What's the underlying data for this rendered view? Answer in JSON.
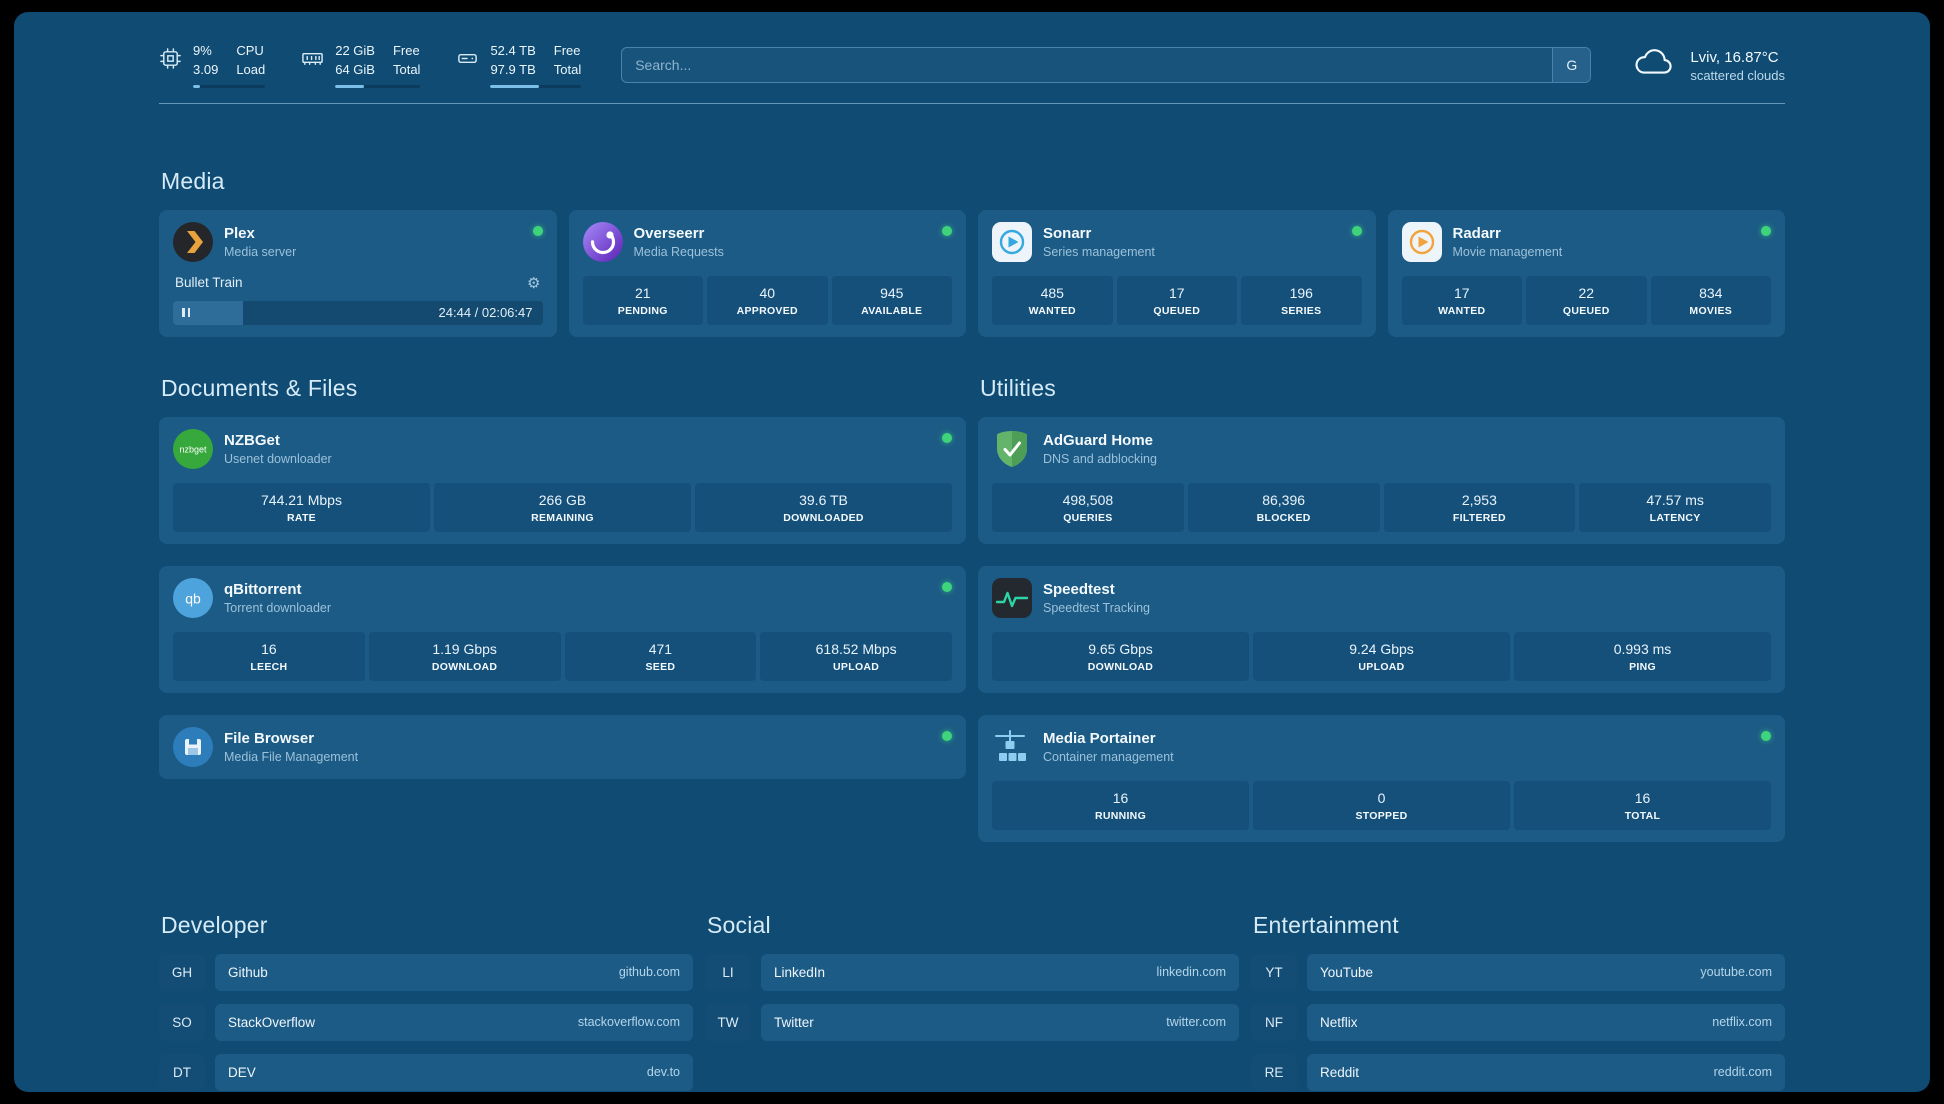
{
  "topbar": {
    "metrics": [
      {
        "icon": "cpu-icon",
        "values": [
          "9%",
          "3.09"
        ],
        "labels": [
          "CPU",
          "Load"
        ],
        "bar_pct": 9
      },
      {
        "icon": "ram-icon",
        "values": [
          "22 GiB",
          "64 GiB"
        ],
        "labels": [
          "Free",
          "Total"
        ],
        "bar_pct": 34
      },
      {
        "icon": "disk-icon",
        "values": [
          "52.4 TB",
          "97.9 TB"
        ],
        "labels": [
          "Free",
          "Total"
        ],
        "bar_pct": 53
      }
    ],
    "search": {
      "placeholder": "Search...",
      "button_label": "G"
    },
    "weather": {
      "location": "Lviv, 16.87°C",
      "condition": "scattered clouds"
    }
  },
  "media": {
    "heading": "Media",
    "plex": {
      "name": "Plex",
      "desc": "Media server",
      "now_playing": "Bullet Train",
      "time": "24:44 / 02:06:47",
      "progress_pct": 19
    },
    "overseerr": {
      "name": "Overseerr",
      "desc": "Media Requests",
      "stats": [
        {
          "value": "21",
          "label": "PENDING"
        },
        {
          "value": "40",
          "label": "APPROVED"
        },
        {
          "value": "945",
          "label": "AVAILABLE"
        }
      ]
    },
    "sonarr": {
      "name": "Sonarr",
      "desc": "Series management",
      "stats": [
        {
          "value": "485",
          "label": "WANTED"
        },
        {
          "value": "17",
          "label": "QUEUED"
        },
        {
          "value": "196",
          "label": "SERIES"
        }
      ]
    },
    "radarr": {
      "name": "Radarr",
      "desc": "Movie management",
      "stats": [
        {
          "value": "17",
          "label": "WANTED"
        },
        {
          "value": "22",
          "label": "QUEUED"
        },
        {
          "value": "834",
          "label": "MOVIES"
        }
      ]
    }
  },
  "documents": {
    "heading": "Documents & Files",
    "nzbget": {
      "name": "NZBGet",
      "desc": "Usenet downloader",
      "stats": [
        {
          "value": "744.21 Mbps",
          "label": "RATE"
        },
        {
          "value": "266 GB",
          "label": "REMAINING"
        },
        {
          "value": "39.6 TB",
          "label": "DOWNLOADED"
        }
      ]
    },
    "qbittorrent": {
      "name": "qBittorrent",
      "desc": "Torrent downloader",
      "stats": [
        {
          "value": "16",
          "label": "LEECH"
        },
        {
          "value": "1.19 Gbps",
          "label": "DOWNLOAD"
        },
        {
          "value": "471",
          "label": "SEED"
        },
        {
          "value": "618.52 Mbps",
          "label": "UPLOAD"
        }
      ]
    },
    "filebrowser": {
      "name": "File Browser",
      "desc": "Media File Management"
    }
  },
  "utilities": {
    "heading": "Utilities",
    "adguard": {
      "name": "AdGuard Home",
      "desc": "DNS and adblocking",
      "stats": [
        {
          "value": "498,508",
          "label": "QUERIES"
        },
        {
          "value": "86,396",
          "label": "BLOCKED"
        },
        {
          "value": "2,953",
          "label": "FILTERED"
        },
        {
          "value": "47.57 ms",
          "label": "LATENCY"
        }
      ]
    },
    "speedtest": {
      "name": "Speedtest",
      "desc": "Speedtest Tracking",
      "stats": [
        {
          "value": "9.65 Gbps",
          "label": "DOWNLOAD"
        },
        {
          "value": "9.24 Gbps",
          "label": "UPLOAD"
        },
        {
          "value": "0.993 ms",
          "label": "PING"
        }
      ]
    },
    "portainer": {
      "name": "Media Portainer",
      "desc": "Container management",
      "stats": [
        {
          "value": "16",
          "label": "RUNNING"
        },
        {
          "value": "0",
          "label": "STOPPED"
        },
        {
          "value": "16",
          "label": "TOTAL"
        }
      ]
    }
  },
  "bookmarks": {
    "developer": {
      "heading": "Developer",
      "items": [
        {
          "abbr": "GH",
          "name": "Github",
          "url": "github.com"
        },
        {
          "abbr": "SO",
          "name": "StackOverflow",
          "url": "stackoverflow.com"
        },
        {
          "abbr": "DT",
          "name": "DEV",
          "url": "dev.to"
        }
      ]
    },
    "social": {
      "heading": "Social",
      "items": [
        {
          "abbr": "LI",
          "name": "LinkedIn",
          "url": "linkedin.com"
        },
        {
          "abbr": "TW",
          "name": "Twitter",
          "url": "twitter.com"
        }
      ]
    },
    "entertainment": {
      "heading": "Entertainment",
      "items": [
        {
          "abbr": "YT",
          "name": "YouTube",
          "url": "youtube.com"
        },
        {
          "abbr": "NF",
          "name": "Netflix",
          "url": "netflix.com"
        },
        {
          "abbr": "RE",
          "name": "Reddit",
          "url": "reddit.com"
        }
      ]
    }
  },
  "icon_labels": {
    "nzbget": "nzbget",
    "qbittorrent": "qb"
  },
  "colors": {
    "background": "#0f4b72",
    "card": "#1c5b85",
    "stat_box": "#15507a",
    "status_ok": "#3ed47c",
    "accent_fill": "#7cc0ea"
  }
}
